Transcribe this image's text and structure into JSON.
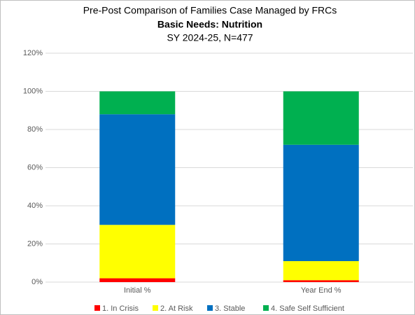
{
  "chart_data": {
    "type": "stacked_bar",
    "title": "Pre-Post Comparison of Families Case Managed by FRCs",
    "subtitle": "Basic Needs: Nutrition",
    "caption": "SY 2024-25, N=477",
    "categories": [
      "Initial %",
      "Year End %"
    ],
    "series": [
      {
        "name": "1. In Crisis",
        "color": "#ff0000",
        "values": [
          2,
          1
        ]
      },
      {
        "name": "2. At Risk",
        "color": "#ffff00",
        "values": [
          28,
          10
        ]
      },
      {
        "name": "3. Stable",
        "color": "#0070c0",
        "values": [
          58,
          61
        ]
      },
      {
        "name": "4. Safe Self Sufficient",
        "color": "#00b050",
        "values": [
          12,
          28
        ]
      }
    ],
    "ylim": [
      0,
      120
    ],
    "yticks": [
      {
        "value": 0,
        "label": "0%"
      },
      {
        "value": 20,
        "label": "20%"
      },
      {
        "value": 40,
        "label": "40%"
      },
      {
        "value": 60,
        "label": "60%"
      },
      {
        "value": 80,
        "label": "80%"
      },
      {
        "value": 100,
        "label": "100%"
      },
      {
        "value": 120,
        "label": "120%"
      }
    ],
    "grid": true,
    "legend": "bottom"
  }
}
